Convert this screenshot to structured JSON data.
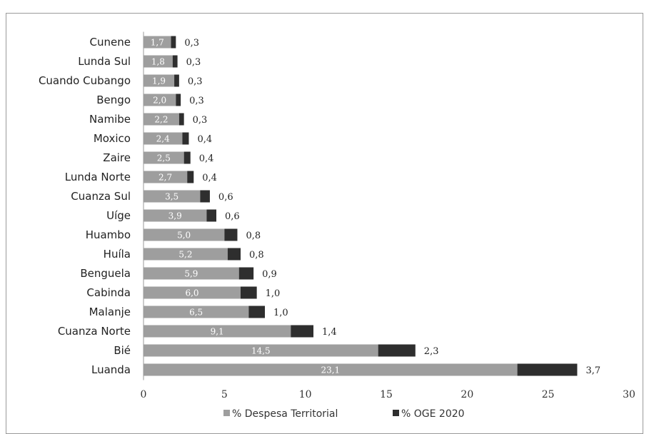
{
  "chart_data": {
    "type": "bar",
    "orientation": "horizontal",
    "stacked": true,
    "categories": [
      "Cunene",
      "Lunda Sul",
      "Cuando Cubango",
      "Bengo",
      "Namibe",
      "Moxico",
      "Zaire",
      "Lunda Norte",
      "Cuanza Sul",
      "Uíge",
      "Huambo",
      "Huíla",
      "Benguela",
      "Cabinda",
      "Malanje",
      "Cuanza Norte",
      "Bié",
      "Luanda"
    ],
    "series": [
      {
        "name": "% Despesa Territorial",
        "color": "#9e9e9e",
        "values": [
          1.7,
          1.8,
          1.9,
          2.0,
          2.2,
          2.4,
          2.5,
          2.7,
          3.5,
          3.9,
          5.0,
          5.2,
          5.9,
          6.0,
          6.5,
          9.1,
          14.5,
          23.1
        ],
        "labels": [
          "1,7",
          "1,8",
          "1,9",
          "2,0",
          "2,2",
          "2,4",
          "2,5",
          "2,7",
          "3,5",
          "3,9",
          "5,0",
          "5,2",
          "5,9",
          "6,0",
          "6,5",
          "9,1",
          "14,5",
          "23,1"
        ]
      },
      {
        "name": "% OGE 2020",
        "color": "#2e2e2e",
        "values": [
          0.3,
          0.3,
          0.3,
          0.3,
          0.3,
          0.4,
          0.4,
          0.4,
          0.6,
          0.6,
          0.8,
          0.8,
          0.9,
          1.0,
          1.0,
          1.4,
          2.3,
          3.7
        ],
        "labels": [
          "0,3",
          "0,3",
          "0,3",
          "0,3",
          "0,3",
          "0,4",
          "0,4",
          "0,4",
          "0,6",
          "0,6",
          "0,8",
          "0,8",
          "0,9",
          "1,0",
          "1,0",
          "1,4",
          "2,3",
          "3,7"
        ]
      }
    ],
    "xlim": [
      0,
      30
    ],
    "xticks": [
      "0",
      "5",
      "10",
      "15",
      "20",
      "25",
      "30"
    ],
    "xlabel": "",
    "ylabel": "",
    "grid": false,
    "legend_position": "bottom"
  }
}
